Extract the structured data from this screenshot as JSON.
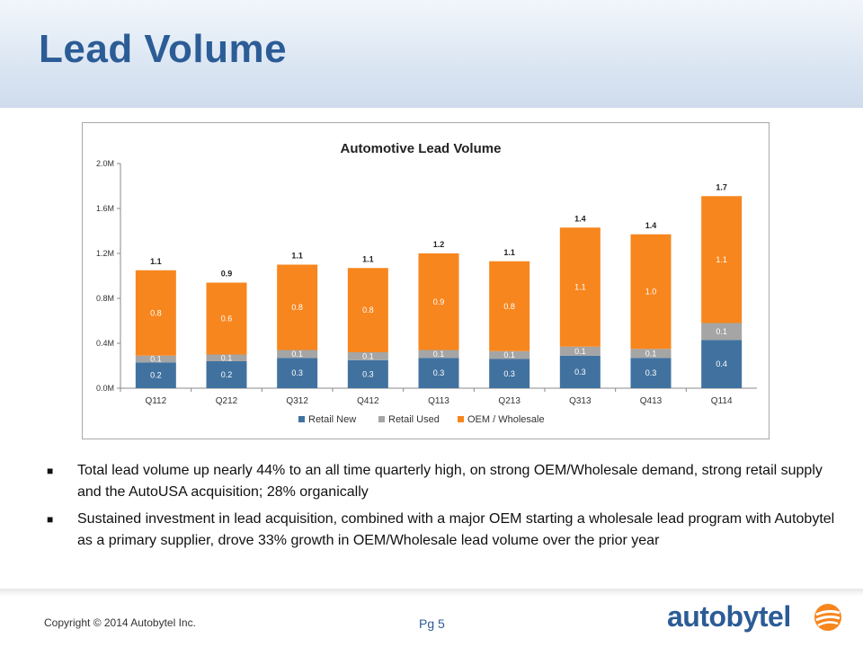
{
  "slide": {
    "title": "Lead Volume",
    "bullets": [
      "Total lead volume up nearly 44% to an all time quarterly high, on strong OEM/Wholesale demand, strong retail supply and the AutoUSA acquisition; 28% organically",
      "Sustained investment in lead acquisition, combined with a major OEM starting a wholesale lead program with Autobytel as a primary supplier, drove 33% growth in OEM/Wholesale lead volume over the prior year"
    ],
    "bullet_marker": "■",
    "copyright": "Copyright © 2014 Autobytel Inc.",
    "page_label": "Pg 5",
    "logo_text": "autobytel",
    "logo_icon": "swoosh-ball-icon"
  },
  "colors": {
    "title": "#2c5c96",
    "retail_new": "#41729f",
    "retail_used": "#a5a5a5",
    "oem": "#f7861e"
  },
  "chart_data": {
    "type": "bar",
    "stacked": true,
    "title": "Automotive Lead Volume",
    "categories": [
      "Q112",
      "Q212",
      "Q312",
      "Q412",
      "Q113",
      "Q213",
      "Q313",
      "Q413",
      "Q114"
    ],
    "series": [
      {
        "name": "Retail New",
        "values": [
          0.23,
          0.24,
          0.27,
          0.25,
          0.27,
          0.26,
          0.29,
          0.27,
          0.43
        ],
        "labels": [
          "0.2",
          "0.2",
          "0.3",
          "0.3",
          "0.3",
          "0.3",
          "0.3",
          "0.3",
          "0.4"
        ]
      },
      {
        "name": "Retail Used",
        "values": [
          0.06,
          0.06,
          0.07,
          0.07,
          0.07,
          0.07,
          0.08,
          0.08,
          0.15
        ],
        "labels": [
          "0.1",
          "0.1",
          "0.1",
          "0.1",
          "0.1",
          "0.1",
          "0.1",
          "0.1",
          "0.1"
        ]
      },
      {
        "name": "OEM / Wholesale",
        "values": [
          0.76,
          0.64,
          0.76,
          0.75,
          0.86,
          0.8,
          1.06,
          1.02,
          1.13
        ],
        "labels": [
          "0.8",
          "0.6",
          "0.8",
          "0.8",
          "0.9",
          "0.8",
          "1.1",
          "1.0",
          "1.1"
        ]
      }
    ],
    "totals": [
      "1.1",
      "0.9",
      "1.1",
      "1.1",
      "1.2",
      "1.1",
      "1.4",
      "1.4",
      "1.7"
    ],
    "yticks": [
      "0.0M",
      "0.4M",
      "0.8M",
      "1.2M",
      "1.6M",
      "2.0M"
    ],
    "ylim": [
      0,
      2.0
    ],
    "legend_position": "bottom",
    "grid": false
  }
}
